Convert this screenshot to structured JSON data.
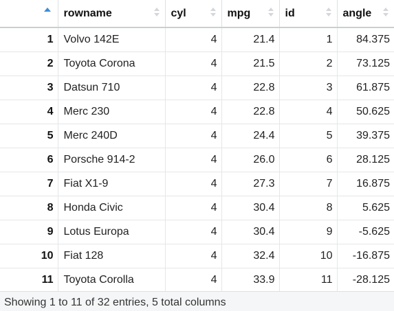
{
  "table": {
    "columns": [
      {
        "key": "index",
        "label": ""
      },
      {
        "key": "rowname",
        "label": "rowname"
      },
      {
        "key": "cyl",
        "label": "cyl"
      },
      {
        "key": "mpg",
        "label": "mpg"
      },
      {
        "key": "id",
        "label": "id"
      },
      {
        "key": "angle",
        "label": "angle"
      }
    ],
    "rows": [
      {
        "index": "1",
        "rowname": "Volvo 142E",
        "cyl": "4",
        "mpg": "21.4",
        "id": "1",
        "angle": "84.375"
      },
      {
        "index": "2",
        "rowname": "Toyota Corona",
        "cyl": "4",
        "mpg": "21.5",
        "id": "2",
        "angle": "73.125"
      },
      {
        "index": "3",
        "rowname": "Datsun 710",
        "cyl": "4",
        "mpg": "22.8",
        "id": "3",
        "angle": "61.875"
      },
      {
        "index": "4",
        "rowname": "Merc 230",
        "cyl": "4",
        "mpg": "22.8",
        "id": "4",
        "angle": "50.625"
      },
      {
        "index": "5",
        "rowname": "Merc 240D",
        "cyl": "4",
        "mpg": "24.4",
        "id": "5",
        "angle": "39.375"
      },
      {
        "index": "6",
        "rowname": "Porsche 914-2",
        "cyl": "4",
        "mpg": "26.0",
        "id": "6",
        "angle": "28.125"
      },
      {
        "index": "7",
        "rowname": "Fiat X1-9",
        "cyl": "4",
        "mpg": "27.3",
        "id": "7",
        "angle": "16.875"
      },
      {
        "index": "8",
        "rowname": "Honda Civic",
        "cyl": "4",
        "mpg": "30.4",
        "id": "8",
        "angle": "5.625"
      },
      {
        "index": "9",
        "rowname": "Lotus Europa",
        "cyl": "4",
        "mpg": "30.4",
        "id": "9",
        "angle": "-5.625"
      },
      {
        "index": "10",
        "rowname": "Fiat 128",
        "cyl": "4",
        "mpg": "32.4",
        "id": "10",
        "angle": "-16.875"
      },
      {
        "index": "11",
        "rowname": "Toyota Corolla",
        "cyl": "4",
        "mpg": "33.9",
        "id": "11",
        "angle": "-28.125"
      }
    ]
  },
  "footer": {
    "text": "Showing 1 to 11 of 32 entries, 5 total columns"
  },
  "colors": {
    "sort_active": "#3b8ed8",
    "sort_inactive": "#d4d6d9"
  }
}
